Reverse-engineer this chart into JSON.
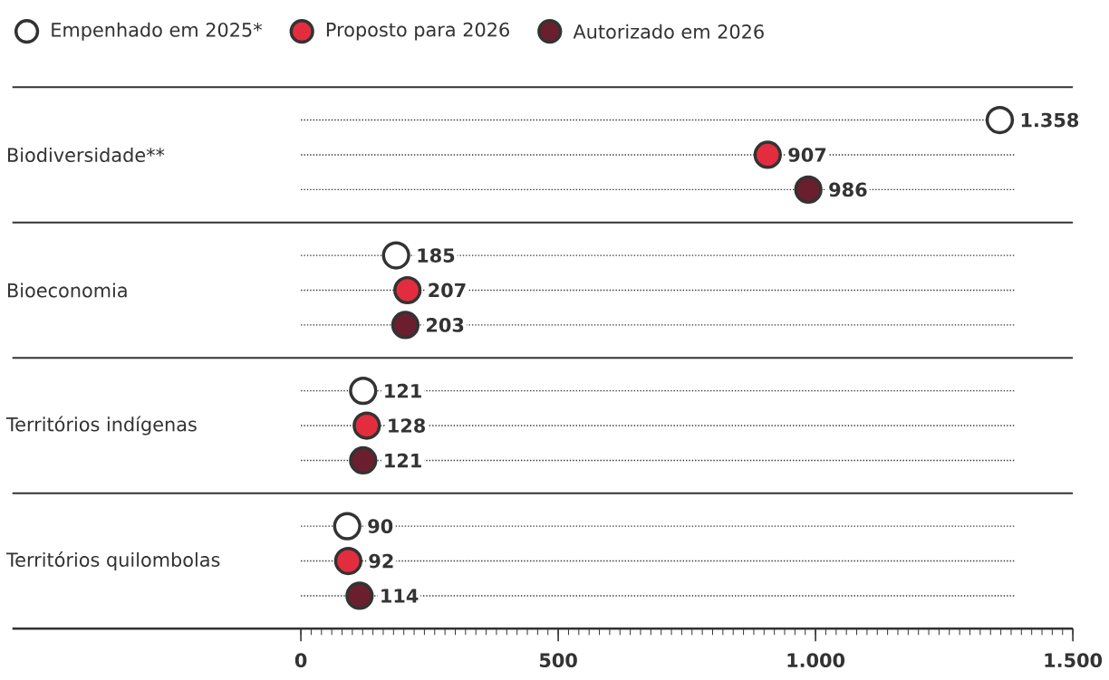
{
  "chart_data": {
    "type": "scatter",
    "orientation": "horizontal",
    "categories": [
      "Biodiversidade**",
      "Bioeconomia",
      "Territórios indígenas",
      "Territórios quilombolas"
    ],
    "series": [
      {
        "name": "Empenhado em 2025*",
        "color": "#ffffff",
        "values": [
          1358,
          185,
          121,
          90
        ],
        "value_labels": [
          "1.358",
          "185",
          "121",
          "90"
        ]
      },
      {
        "name": "Proposto para 2026",
        "color": "#e32d3f",
        "values": [
          907,
          207,
          128,
          92
        ],
        "value_labels": [
          "907",
          "207",
          "128",
          "92"
        ]
      },
      {
        "name": "Autorizado em 2026",
        "color": "#6b1f2e",
        "values": [
          986,
          203,
          121,
          114
        ],
        "value_labels": [
          "986",
          "203",
          "121",
          "114"
        ]
      }
    ],
    "xlim": [
      0,
      1500
    ],
    "xticks": [
      0,
      500,
      {
        "value": 1000,
        "label": "1.000"
      },
      {
        "value": 1500,
        "label": "1.500"
      }
    ],
    "marker": "circle",
    "legend": "top left",
    "grid": "y"
  }
}
